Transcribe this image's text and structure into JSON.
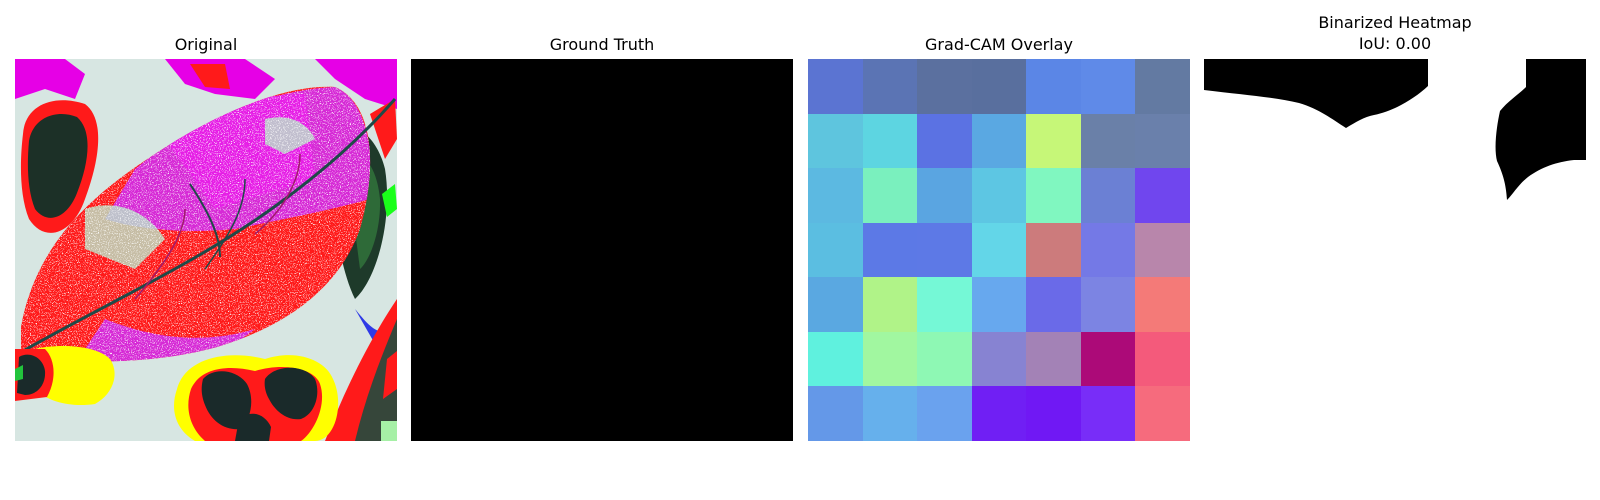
{
  "panels": {
    "original": {
      "title": "Original"
    },
    "ground_truth": {
      "title": "Ground Truth"
    },
    "gradcam": {
      "title": "Grad-CAM Overlay"
    },
    "binarized": {
      "title": "Binarized Heatmap\nIoU: 0.00"
    }
  },
  "gradcam_grid": {
    "rows": 7,
    "cols": 7,
    "colors": [
      [
        "#5b74d2",
        "#5b74b4",
        "#5b709f",
        "#596f9e",
        "#5b86e6",
        "#5f8ae8",
        "#637aa2"
      ],
      [
        "#5ec5de",
        "#5dd5e1",
        "#5b72e3",
        "#5aa8e2",
        "#c6f778",
        "#6a80a8",
        "#6a80ab"
      ],
      [
        "#5cb9e1",
        "#7af0be",
        "#5aa5e1",
        "#5dc6e3",
        "#80f7c0",
        "#6b80d4",
        "#7046ee"
      ],
      [
        "#5bbee1",
        "#5c79e6",
        "#5d79e6",
        "#63d6e8",
        "#cc7b7c",
        "#7479e6",
        "#b886ab"
      ],
      [
        "#5aa8e1",
        "#b0f388",
        "#75f8d6",
        "#67a8ee",
        "#6a6ae8",
        "#7c84e3",
        "#f47a78"
      ],
      [
        "#5ff1de",
        "#a1f7a0",
        "#8ef8b4",
        "#8783d2",
        "#a382b6",
        "#ac0a78",
        "#f45a7b"
      ],
      [
        "#6498e8",
        "#66b0ec",
        "#6aa2ee",
        "#701ff4",
        "#7018f4",
        "#782df8",
        "#f66b7d"
      ]
    ]
  }
}
